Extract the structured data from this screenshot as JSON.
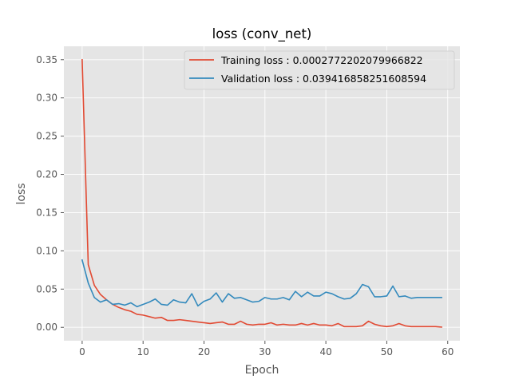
{
  "chart_data": {
    "type": "line",
    "title": "loss (conv_net)",
    "xlabel": "Epoch",
    "ylabel": "loss",
    "xlim": [
      -3,
      62
    ],
    "ylim": [
      -0.0175,
      0.3675
    ],
    "xticks": [
      0,
      10,
      20,
      30,
      40,
      50,
      60
    ],
    "yticks": [
      0.0,
      0.05,
      0.1,
      0.15,
      0.2,
      0.25,
      0.3,
      0.35
    ],
    "ytick_labels": [
      "0.00",
      "0.05",
      "0.10",
      "0.15",
      "0.20",
      "0.25",
      "0.30",
      "0.35"
    ],
    "grid": true,
    "legend_position": "top-right",
    "x": [
      0,
      1,
      2,
      3,
      4,
      5,
      6,
      7,
      8,
      9,
      10,
      11,
      12,
      13,
      14,
      15,
      16,
      17,
      18,
      19,
      20,
      21,
      22,
      23,
      24,
      25,
      26,
      27,
      28,
      29,
      30,
      31,
      32,
      33,
      34,
      35,
      36,
      37,
      38,
      39,
      40,
      41,
      42,
      43,
      44,
      45,
      46,
      47,
      48,
      49,
      50,
      51,
      52,
      53,
      54,
      55,
      56,
      57,
      58,
      59
    ],
    "series": [
      {
        "name": "Training loss : 0.0002772202079966822",
        "color": "#E24A33",
        "values": [
          0.35,
          0.082,
          0.055,
          0.043,
          0.036,
          0.03,
          0.026,
          0.023,
          0.021,
          0.017,
          0.016,
          0.014,
          0.012,
          0.013,
          0.009,
          0.009,
          0.01,
          0.009,
          0.008,
          0.007,
          0.006,
          0.005,
          0.006,
          0.007,
          0.004,
          0.004,
          0.008,
          0.004,
          0.003,
          0.004,
          0.004,
          0.006,
          0.003,
          0.004,
          0.003,
          0.003,
          0.005,
          0.003,
          0.005,
          0.003,
          0.003,
          0.002,
          0.005,
          0.001,
          0.001,
          0.001,
          0.002,
          0.008,
          0.004,
          0.002,
          0.001,
          0.002,
          0.005,
          0.002,
          0.001,
          0.001,
          0.001,
          0.001,
          0.001,
          0.0003
        ]
      },
      {
        "name": "Validation loss : 0.039416858251608594",
        "color": "#348ABD",
        "values": [
          0.088,
          0.058,
          0.039,
          0.033,
          0.036,
          0.03,
          0.031,
          0.029,
          0.032,
          0.027,
          0.03,
          0.033,
          0.037,
          0.03,
          0.029,
          0.036,
          0.033,
          0.032,
          0.044,
          0.028,
          0.034,
          0.037,
          0.045,
          0.033,
          0.044,
          0.038,
          0.039,
          0.036,
          0.033,
          0.034,
          0.039,
          0.037,
          0.037,
          0.039,
          0.036,
          0.047,
          0.04,
          0.046,
          0.041,
          0.041,
          0.046,
          0.044,
          0.04,
          0.037,
          0.038,
          0.044,
          0.056,
          0.053,
          0.04,
          0.04,
          0.041,
          0.054,
          0.04,
          0.041,
          0.038,
          0.039,
          0.039,
          0.039,
          0.039,
          0.039
        ]
      }
    ]
  }
}
